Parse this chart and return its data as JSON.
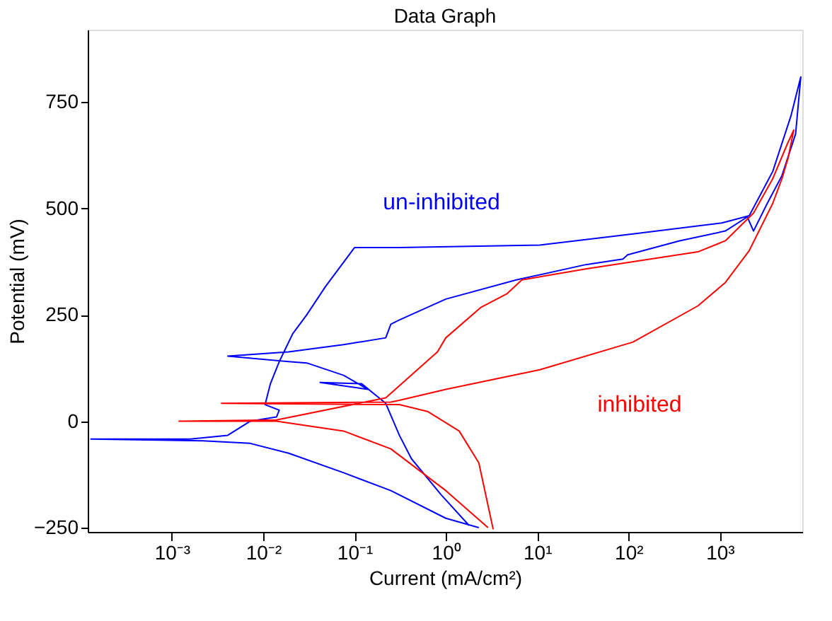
{
  "chart_data": {
    "type": "line",
    "title": "Data Graph",
    "xlabel": "Current (mA/cm²)",
    "ylabel": "Potential (mV)",
    "log": "x",
    "xlim": [
      0.00012,
      8000
    ],
    "ylim": [
      -260,
      920
    ],
    "xticks": [
      {
        "value": 0.001,
        "label": "10⁻³"
      },
      {
        "value": 0.01,
        "label": "10⁻²"
      },
      {
        "value": 0.1,
        "label": "10⁻¹"
      },
      {
        "value": 1,
        "label": "10⁰"
      },
      {
        "value": 10,
        "label": "10¹"
      },
      {
        "value": 100,
        "label": "10²"
      },
      {
        "value": 1000,
        "label": "10³"
      }
    ],
    "yticks": [
      -250,
      0,
      250,
      500,
      750
    ],
    "series": [
      {
        "name": "un-inhibited",
        "color": "#0000ff",
        "x": [
          2.3,
          1.0,
          0.25,
          0.076,
          0.019,
          0.0072,
          0.0022,
          0.00013,
          0.0016,
          0.0041,
          0.0072,
          0.014,
          0.015,
          0.0105,
          0.012,
          0.015,
          0.021,
          0.03,
          0.048,
          0.1,
          0.31,
          10.7,
          112,
          1050,
          2100,
          3800,
          6000,
          7700,
          6760,
          4790,
          3310,
          2340,
          2000,
          1150,
          363,
          98,
          87,
          34,
          5.9,
          1.0,
          0.31,
          0.25,
          0.22,
          0.076,
          0.019,
          0.0041,
          0.019,
          0.03,
          0.076,
          0.14,
          0.042,
          0.12,
          0.22,
          0.31,
          0.42,
          0.89,
          1.8
        ],
        "values": [
          -250,
          -228,
          -163,
          -121,
          -75,
          -52,
          -46,
          -42,
          -42,
          -33,
          0,
          10,
          26,
          39,
          88,
          140,
          205,
          250,
          316,
          408,
          408,
          414,
          440,
          466,
          483,
          587,
          717,
          809,
          675,
          577,
          512,
          447,
          480,
          447,
          424,
          391,
          381,
          368,
          332,
          287,
          238,
          228,
          196,
          180,
          163,
          153,
          140,
          137,
          108,
          75,
          91,
          88,
          42,
          -33,
          -88,
          -173,
          -245
        ]
      },
      {
        "name": "inhibited",
        "color": "#ff0000",
        "x": [
          2.9,
          1.0,
          0.25,
          0.076,
          0.014,
          0.0012,
          0.014,
          0.22,
          0.81,
          1.0,
          2.4,
          4.7,
          6.8,
          34,
          575,
          1150,
          2340,
          3800,
          5500,
          6450,
          5600,
          4790,
          3800,
          2100,
          1150,
          575,
          112,
          10.7,
          1.0,
          0.31,
          0.25,
          0.0035,
          0.31,
          0.63,
          1.4,
          2.3,
          3.3
        ],
        "values": [
          -250,
          -163,
          -65,
          -23,
          0,
          0,
          3,
          55,
          163,
          196,
          267,
          300,
          332,
          358,
          398,
          424,
          489,
          570,
          652,
          684,
          619,
          570,
          512,
          401,
          326,
          271,
          186,
          121,
          75,
          49,
          45,
          42,
          39,
          23,
          -23,
          -98,
          -254
        ]
      }
    ]
  }
}
